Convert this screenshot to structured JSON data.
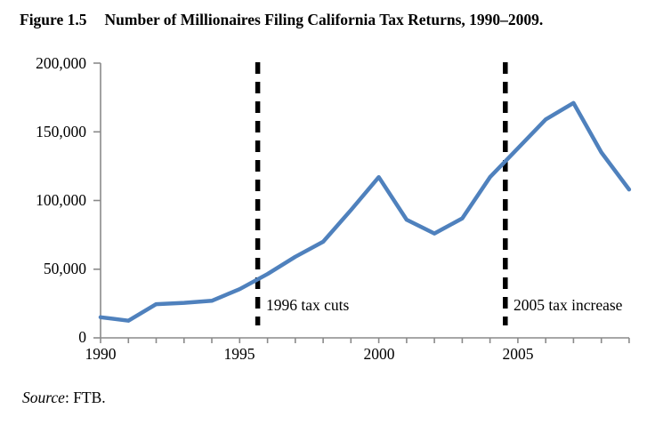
{
  "figure": {
    "label": "Figure 1.5",
    "title": "Number of Millionaires Filing California Tax Returns, 1990–2009.",
    "source_word": "Source",
    "source_rest": ": FTB."
  },
  "chart_data": {
    "type": "line",
    "title": "Number of Millionaires Filing California Tax Returns, 1990–2009",
    "series_name": "Millionaires filing California tax returns",
    "x": [
      1990,
      1991,
      1992,
      1993,
      1994,
      1995,
      1996,
      1997,
      1998,
      1999,
      2000,
      2001,
      2002,
      2003,
      2004,
      2005,
      2006,
      2007,
      2008,
      2009
    ],
    "values": [
      15000,
      12500,
      24500,
      25500,
      27000,
      35500,
      46500,
      59000,
      70000,
      93000,
      117000,
      86000,
      76000,
      87000,
      117000,
      138000,
      159000,
      171000,
      135000,
      108000
    ],
    "xlabel": "",
    "ylabel": "",
    "xlim": [
      1990,
      2009
    ],
    "ylim": [
      0,
      200000
    ],
    "y_tick_values": [
      0,
      50000,
      100000,
      150000,
      200000
    ],
    "y_tick_labels": [
      "0",
      "50,000",
      "100,000",
      "150,000",
      "200,000"
    ],
    "x_tick_years": [
      1990,
      1995,
      2000,
      2005
    ],
    "x_tick_labels": [
      "1990",
      "1995",
      "2000",
      "2005"
    ],
    "x_minor_tick_every_year": true,
    "grid": false,
    "legend": "none",
    "annotations": [
      {
        "label": "1996 tax cuts",
        "x_year": 1995.65,
        "line_style": "dashed"
      },
      {
        "label": "2005 tax increase",
        "x_year": 2004.55,
        "line_style": "dashed"
      }
    ],
    "line_color": "#4F81BD",
    "axis_color": "#8A8A8A",
    "event_line_color": "#000000"
  }
}
